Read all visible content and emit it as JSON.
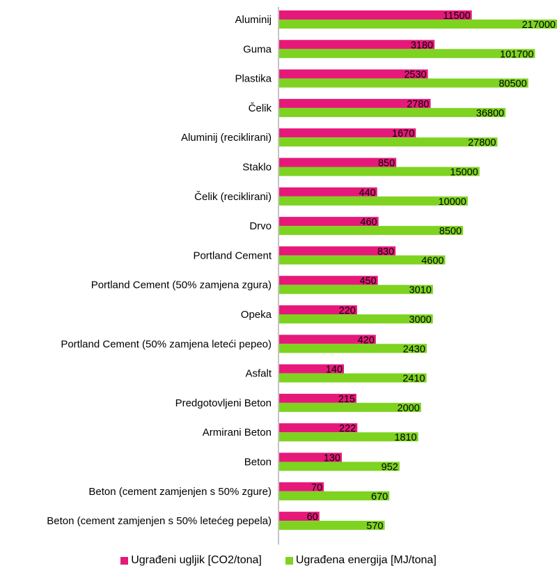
{
  "chart_data": {
    "type": "bar",
    "orientation": "horizontal",
    "categories": [
      "Aluminij",
      "Guma",
      "Plastika",
      "Čelik",
      "Aluminij (reciklirani)",
      "Staklo",
      "Čelik (reciklirani)",
      "Drvo",
      "Portland Cement",
      "Portland Cement (50% zamjena zgura)",
      "Opeka",
      "Portland Cement (50% zamjena leteći pepeo)",
      "Asfalt",
      "Predgotovljeni Beton",
      "Armirani Beton",
      "Beton",
      "Beton (cement zamjenjen s 50% zgure)",
      "Beton (cement zamjenjen s 50% letećeg pepela)"
    ],
    "scale": "log",
    "series": [
      {
        "name": "Ugrađeni ugljik [CO2/tona]",
        "color": "#e6197a",
        "values": [
          11500,
          3180,
          2530,
          2780,
          1670,
          850,
          440,
          460,
          830,
          450,
          220,
          420,
          140,
          215,
          222,
          130,
          70,
          60
        ]
      },
      {
        "name": "Ugrađena energija [MJ/tona]",
        "color": "#7ed321",
        "values": [
          217000,
          101700,
          80500,
          36800,
          27800,
          15000,
          10000,
          8500,
          4600,
          3010,
          3000,
          2430,
          2410,
          2000,
          1810,
          952,
          670,
          570
        ]
      }
    ],
    "grid": false,
    "legend_position": "bottom"
  }
}
